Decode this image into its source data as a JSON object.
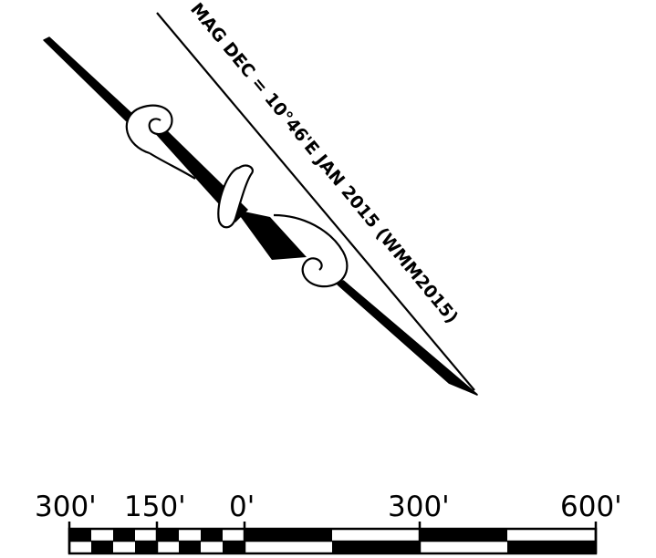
{
  "magnetic_declination": {
    "label": "MAG DEC = 10°46'E JAN 2015 (WMM2015)",
    "declination_deg": 10.77
  },
  "scale_bar": {
    "labels": [
      "300'",
      "150'",
      "0'",
      "300'",
      "600'"
    ]
  },
  "colors": {
    "ink": "#000000",
    "paper": "#ffffff"
  }
}
